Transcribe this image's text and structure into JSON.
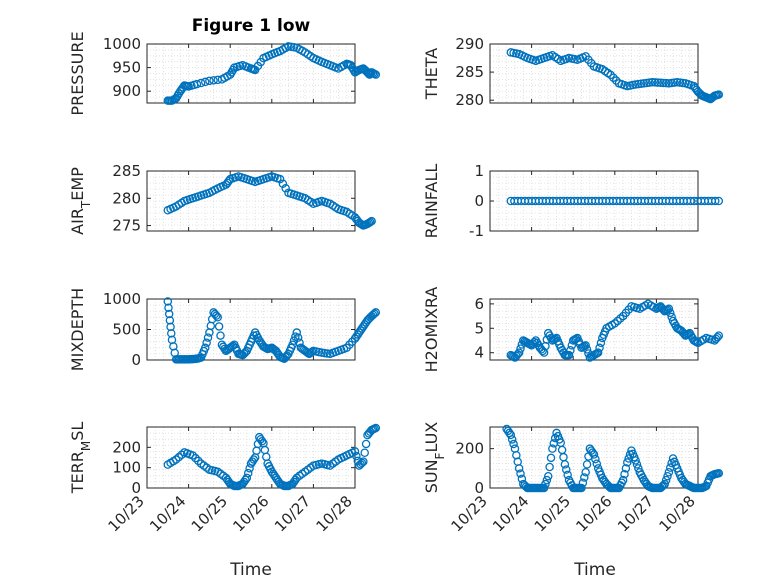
{
  "figure": {
    "title": "Figure 1 low",
    "xlabel": "Time",
    "xticklabels": [
      "10/23",
      "10/24",
      "10/25",
      "10/26",
      "10/27",
      "10/28"
    ]
  },
  "colors": {
    "marker": "#0072BD",
    "axis": "#262626",
    "grid": "#dcdcdc"
  },
  "chart_data": [
    {
      "type": "scatter",
      "ylabel": "PRESSURE",
      "ylim": [
        875,
        1000
      ],
      "yticks": [
        900,
        950,
        1000
      ],
      "grid": true,
      "x": [
        0.5,
        0.6,
        0.7,
        0.8,
        0.9,
        1.0,
        1.2,
        1.5,
        1.8,
        2.0,
        2.1,
        2.3,
        2.5,
        2.6,
        2.8,
        3.0,
        3.2,
        3.4,
        3.6,
        3.8,
        4.0,
        4.2,
        4.4,
        4.6,
        4.8,
        4.9,
        5.0,
        5.1,
        5.2,
        5.3,
        5.35,
        5.4,
        5.5
      ],
      "y": [
        880,
        880,
        885,
        900,
        912,
        910,
        915,
        922,
        925,
        935,
        950,
        955,
        948,
        945,
        970,
        978,
        985,
        995,
        992,
        982,
        970,
        962,
        955,
        948,
        958,
        955,
        940,
        945,
        948,
        940,
        935,
        940,
        935
      ]
    },
    {
      "type": "scatter",
      "ylabel": "AIR_TEMP",
      "ylim": [
        274,
        285
      ],
      "yticks": [
        275,
        280,
        285
      ],
      "grid": true,
      "x": [
        0.5,
        0.7,
        0.9,
        1.1,
        1.3,
        1.5,
        1.7,
        1.9,
        2.0,
        2.2,
        2.4,
        2.6,
        2.8,
        3.0,
        3.2,
        3.4,
        3.6,
        3.8,
        4.0,
        4.2,
        4.4,
        4.6,
        4.8,
        5.0,
        5.1,
        5.2,
        5.3,
        5.4
      ],
      "y": [
        277.8,
        278.5,
        279.5,
        280,
        280.5,
        281,
        281.8,
        282.5,
        283.5,
        284,
        283.5,
        283,
        283.5,
        284,
        283.5,
        281,
        280.5,
        280,
        279,
        279.5,
        279,
        278,
        277.5,
        276.5,
        275.5,
        275,
        275.3,
        275.8
      ]
    },
    {
      "type": "scatter",
      "ylabel": "MIXDEPTH",
      "ylim": [
        0,
        1000
      ],
      "yticks": [
        0,
        500,
        1000
      ],
      "grid": true,
      "x": [
        0.5,
        0.55,
        0.6,
        0.7,
        0.8,
        0.9,
        1.0,
        1.1,
        1.2,
        1.3,
        1.4,
        1.5,
        1.6,
        1.7,
        1.8,
        1.9,
        2.0,
        2.1,
        2.2,
        2.3,
        2.4,
        2.5,
        2.6,
        2.7,
        2.8,
        2.9,
        3.0,
        3.1,
        3.2,
        3.3,
        3.4,
        3.5,
        3.6,
        3.7,
        3.8,
        3.9,
        4.0,
        4.2,
        4.4,
        4.6,
        4.8,
        5.0,
        5.1,
        5.2,
        5.3,
        5.4,
        5.5
      ],
      "y": [
        960,
        650,
        330,
        10,
        10,
        10,
        10,
        15,
        20,
        40,
        200,
        450,
        780,
        700,
        250,
        150,
        200,
        250,
        100,
        80,
        150,
        300,
        450,
        320,
        220,
        180,
        200,
        150,
        50,
        20,
        100,
        250,
        450,
        200,
        150,
        100,
        150,
        120,
        100,
        150,
        200,
        350,
        450,
        550,
        650,
        720,
        780
      ]
    },
    {
      "type": "scatter",
      "ylabel": "TERR_MSL",
      "ylim": [
        0,
        300
      ],
      "yticks": [
        0,
        100,
        200
      ],
      "grid": true,
      "x": [
        0.5,
        0.7,
        0.9,
        1.1,
        1.3,
        1.5,
        1.7,
        1.9,
        2.0,
        2.1,
        2.2,
        2.3,
        2.4,
        2.5,
        2.6,
        2.7,
        2.8,
        2.9,
        3.0,
        3.1,
        3.2,
        3.3,
        3.4,
        3.5,
        3.6,
        3.8,
        4.0,
        4.2,
        4.4,
        4.6,
        4.8,
        5.0,
        5.1,
        5.2,
        5.3,
        5.4,
        5.5
      ],
      "y": [
        115,
        140,
        175,
        160,
        120,
        90,
        80,
        50,
        20,
        10,
        10,
        20,
        50,
        120,
        150,
        250,
        220,
        120,
        80,
        50,
        20,
        10,
        10,
        20,
        50,
        80,
        110,
        120,
        110,
        140,
        160,
        180,
        110,
        130,
        260,
        285,
        295
      ]
    },
    {
      "type": "scatter",
      "ylabel": "THETA",
      "ylim": [
        279.5,
        290
      ],
      "yticks": [
        280,
        285,
        290
      ],
      "grid": true,
      "x": [
        0.5,
        0.7,
        0.9,
        1.1,
        1.3,
        1.5,
        1.7,
        1.9,
        2.1,
        2.3,
        2.5,
        2.7,
        2.9,
        3.1,
        3.3,
        3.5,
        3.7,
        3.9,
        4.1,
        4.3,
        4.5,
        4.7,
        4.9,
        5.0,
        5.1,
        5.2,
        5.3,
        5.4,
        5.5
      ],
      "y": [
        288.5,
        288.2,
        287.5,
        287,
        287.5,
        288,
        287,
        287.5,
        287.2,
        287.8,
        286,
        285.5,
        284.5,
        283,
        282.5,
        282.8,
        283,
        283.2,
        283.1,
        283,
        283.2,
        283,
        282.5,
        281.5,
        280.8,
        280.5,
        280.2,
        280.8,
        281
      ]
    },
    {
      "type": "scatter",
      "ylabel": "RAINFALL",
      "ylim": [
        -1,
        1
      ],
      "yticks": [
        -1,
        0,
        1
      ],
      "grid": true,
      "x_range": [
        0.5,
        5.5
      ],
      "constant_value": 0
    },
    {
      "type": "scatter",
      "ylabel": "H2OMIXRA",
      "ylim": [
        3.7,
        6.2
      ],
      "yticks": [
        4,
        5,
        6
      ],
      "grid": true,
      "x": [
        0.5,
        0.6,
        0.7,
        0.8,
        0.9,
        1.0,
        1.1,
        1.2,
        1.3,
        1.4,
        1.5,
        1.6,
        1.7,
        1.8,
        1.9,
        2.0,
        2.1,
        2.2,
        2.3,
        2.4,
        2.5,
        2.6,
        2.7,
        2.8,
        3.0,
        3.2,
        3.4,
        3.6,
        3.8,
        4.0,
        4.1,
        4.2,
        4.3,
        4.4,
        4.5,
        4.6,
        4.7,
        4.8,
        4.9,
        5.0,
        5.2,
        5.4,
        5.5
      ],
      "y": [
        3.9,
        3.8,
        4.0,
        4.5,
        4.4,
        4.3,
        4.5,
        4.2,
        4.0,
        4.8,
        4.5,
        4.6,
        4.2,
        3.9,
        3.9,
        4.5,
        4.6,
        4.2,
        4.3,
        3.8,
        3.9,
        4.0,
        4.6,
        5.0,
        5.2,
        5.5,
        5.9,
        5.8,
        6.0,
        5.8,
        5.9,
        5.7,
        5.8,
        5.3,
        5.0,
        4.9,
        4.7,
        4.8,
        4.5,
        4.4,
        4.6,
        4.5,
        4.7
      ]
    },
    {
      "type": "scatter",
      "ylabel": "SUN_FLUX",
      "ylim": [
        0,
        310
      ],
      "yticks": [
        0,
        200
      ],
      "grid": true,
      "x": [
        0.4,
        0.5,
        0.6,
        0.7,
        0.8,
        0.9,
        1.0,
        1.1,
        1.2,
        1.3,
        1.4,
        1.5,
        1.6,
        1.7,
        1.8,
        1.9,
        2.0,
        2.1,
        2.2,
        2.3,
        2.4,
        2.5,
        2.6,
        2.7,
        2.8,
        2.9,
        3.0,
        3.1,
        3.2,
        3.3,
        3.4,
        3.5,
        3.6,
        3.7,
        3.8,
        3.9,
        4.0,
        4.1,
        4.2,
        4.3,
        4.4,
        4.5,
        4.6,
        4.7,
        4.8,
        4.9,
        5.0,
        5.1,
        5.2,
        5.3,
        5.4,
        5.5
      ],
      "y": [
        300,
        270,
        200,
        100,
        20,
        0,
        0,
        0,
        0,
        0,
        60,
        200,
        280,
        230,
        120,
        40,
        0,
        0,
        0,
        80,
        200,
        170,
        100,
        50,
        20,
        0,
        0,
        0,
        40,
        130,
        190,
        140,
        80,
        40,
        10,
        0,
        0,
        0,
        20,
        80,
        150,
        100,
        50,
        20,
        10,
        0,
        0,
        0,
        10,
        60,
        70,
        75
      ]
    }
  ]
}
